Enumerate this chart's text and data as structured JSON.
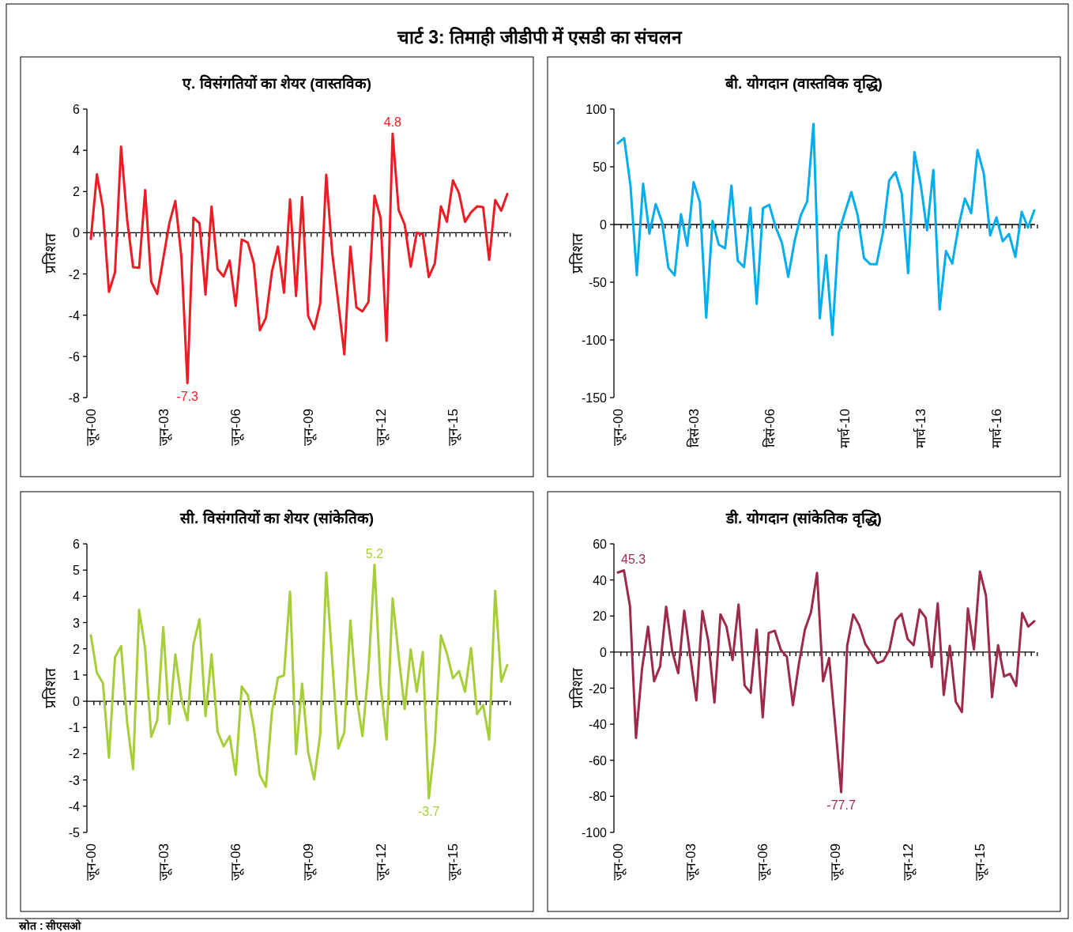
{
  "chart_data": [
    {
      "type": "other",
      "title": "चार्ट 3: तिमाही जीडीपी में एसडी का संचलन",
      "annotations": [
        "स्रोत : सीएसओ"
      ]
    },
    {
      "type": "line",
      "title": "ए. विसंगतियों का शेयर (वास्तविक)",
      "ylabel": "प्रतिशत",
      "ylim": [
        -8,
        6
      ],
      "yticks": [
        -8,
        -6,
        -4,
        -2,
        0,
        2,
        4,
        6
      ],
      "categories": [
        "जून-00",
        null,
        null,
        null,
        null,
        null,
        null,
        null,
        null,
        null,
        null,
        null,
        "जून-03",
        null,
        null,
        null,
        null,
        null,
        null,
        null,
        null,
        null,
        null,
        null,
        "जून-06",
        null,
        null,
        null,
        null,
        null,
        null,
        null,
        null,
        null,
        null,
        null,
        "जून-09",
        null,
        null,
        null,
        null,
        null,
        null,
        null,
        null,
        null,
        null,
        null,
        "जून-12",
        null,
        null,
        null,
        null,
        null,
        null,
        null,
        null,
        null,
        null,
        null,
        "जून-15",
        null,
        null,
        null,
        null,
        null,
        null,
        null,
        null,
        null
      ],
      "series": [
        {
          "color": "#ed1c24",
          "values": [
            -0.3,
            2.84,
            1.18,
            -2.87,
            -1.92,
            4.18,
            0.67,
            -1.67,
            -1.7,
            2.07,
            -2.37,
            -2.97,
            -1.25,
            0.46,
            1.54,
            -1.17,
            -7.3,
            0.73,
            0.46,
            -3.0,
            1.27,
            -1.78,
            -2.12,
            -1.35,
            -3.55,
            -0.33,
            -0.48,
            -1.48,
            -4.73,
            -4.14,
            -1.89,
            -0.67,
            -2.91,
            1.62,
            -3.07,
            1.73,
            -4.03,
            -4.68,
            -3.44,
            2.82,
            -1.0,
            -3.4,
            -5.9,
            -0.67,
            -3.62,
            -3.82,
            -3.36,
            1.8,
            0.73,
            -5.25,
            4.8,
            1.1,
            0.4,
            -1.65,
            0,
            -0.07,
            -2.15,
            -1.48,
            1.28,
            0.53,
            2.54,
            1.92,
            0.53,
            0.99,
            1.28,
            1.24,
            -1.32,
            1.59,
            1.07,
            1.88
          ],
          "value_labels": [
            null,
            null,
            null,
            null,
            null,
            null,
            null,
            null,
            null,
            null,
            null,
            null,
            null,
            null,
            null,
            null,
            "-7.3",
            null,
            null,
            null,
            null,
            null,
            null,
            null,
            null,
            null,
            null,
            null,
            null,
            null,
            null,
            null,
            null,
            null,
            null,
            null,
            null,
            null,
            null,
            null,
            null,
            null,
            null,
            null,
            null,
            null,
            null,
            null,
            null,
            null,
            "4.8",
            null,
            null,
            null,
            null,
            null,
            null,
            null,
            null,
            null,
            null,
            null,
            null,
            null,
            null,
            null,
            null,
            null,
            null,
            null
          ]
        }
      ]
    },
    {
      "type": "line",
      "title": "बी. योगदान (वास्तविक वृद्धि)",
      "ylabel": "प्रतिशत",
      "ylim": [
        -150,
        100
      ],
      "yticks": [
        -150,
        -100,
        -50,
        0,
        50,
        100
      ],
      "categories": [
        "जून-00",
        null,
        null,
        null,
        null,
        null,
        null,
        null,
        null,
        null,
        null,
        null,
        "दिसं-03",
        null,
        null,
        null,
        null,
        null,
        null,
        null,
        null,
        null,
        null,
        null,
        "दिसं-06",
        null,
        null,
        null,
        null,
        null,
        null,
        null,
        null,
        null,
        null,
        null,
        "मार्च-10",
        null,
        null,
        null,
        null,
        null,
        null,
        null,
        null,
        null,
        null,
        null,
        "मार्च-13",
        null,
        null,
        null,
        null,
        null,
        null,
        null,
        null,
        null,
        null,
        null,
        "मार्च-16",
        null,
        null,
        null,
        null,
        null,
        null
      ],
      "series": [
        {
          "color": "#00aeef",
          "values": [
            70.5,
            74.8,
            33.3,
            -43.9,
            35.3,
            -7.9,
            17.7,
            2.2,
            -37.4,
            -44.1,
            8.9,
            -18.5,
            36.7,
            19.4,
            -80.8,
            3.1,
            -17.5,
            -20.6,
            33.8,
            -31.4,
            -36.9,
            14.6,
            -68.8,
            14.1,
            17.0,
            -2.2,
            -15.8,
            -45.3,
            -14.6,
            8.2,
            19.9,
            87.1,
            -81.3,
            -26.6,
            -95.7,
            -7.4,
            10.6,
            28.1,
            8.2,
            -29.0,
            -34.3,
            -34.5,
            -7.4,
            38.1,
            45.3,
            26.6,
            -42.2,
            62.6,
            34.5,
            -5.0,
            47.2,
            -73.6,
            -23.0,
            -33.8,
            -1.4,
            22.5,
            9.8,
            64.5,
            44.1,
            -9.4,
            6.2,
            -14.6,
            -8.2,
            -28.1,
            11.0,
            -2.6,
            12.2
          ]
        }
      ]
    },
    {
      "type": "line",
      "title": "सी. विसंगतियों का शेयर (सांकेतिक)",
      "ylabel": "प्रतिशत",
      "ylim": [
        -5,
        6
      ],
      "yticks": [
        -5,
        -4,
        -3,
        -2,
        -1,
        0,
        1,
        2,
        3,
        4,
        5,
        6
      ],
      "categories": [
        "जून-00",
        null,
        null,
        null,
        null,
        null,
        null,
        null,
        null,
        null,
        null,
        null,
        "जून-03",
        null,
        null,
        null,
        null,
        null,
        null,
        null,
        null,
        null,
        null,
        null,
        "जून-06",
        null,
        null,
        null,
        null,
        null,
        null,
        null,
        null,
        null,
        null,
        null,
        "जून-09",
        null,
        null,
        null,
        null,
        null,
        null,
        null,
        null,
        null,
        null,
        null,
        "जून-12",
        null,
        null,
        null,
        null,
        null,
        null,
        null,
        null,
        null,
        null,
        null,
        "जून-15",
        null,
        null,
        null,
        null,
        null,
        null,
        null,
        null,
        null
      ],
      "series": [
        {
          "color": "#a6ce39",
          "values": [
            2.51,
            1.09,
            0.69,
            -2.15,
            1.68,
            2.1,
            -0.78,
            -2.59,
            3.48,
            2.01,
            -1.35,
            -0.73,
            2.83,
            -0.86,
            1.79,
            0.08,
            -0.73,
            2.17,
            3.13,
            -0.57,
            1.79,
            -1.16,
            -1.72,
            -1.33,
            -2.8,
            0.56,
            0.24,
            -1.0,
            -2.82,
            -3.26,
            -0.41,
            0.9,
            0.99,
            4.18,
            -2.02,
            0.67,
            -1.93,
            -2.98,
            -1.27,
            4.9,
            1.52,
            -1.8,
            -1.18,
            3.08,
            0.18,
            -1.33,
            1.2,
            5.2,
            0.61,
            -1.46,
            3.92,
            1.74,
            -0.3,
            1.98,
            0.36,
            1.88,
            -3.7,
            -1.59,
            2.51,
            1.82,
            0.88,
            1.15,
            0.36,
            2.03,
            -0.49,
            -0.14,
            -1.46,
            4.21,
            0.75,
            1.38
          ],
          "value_labels": [
            null,
            null,
            null,
            null,
            null,
            null,
            null,
            null,
            null,
            null,
            null,
            null,
            null,
            null,
            null,
            null,
            null,
            null,
            null,
            null,
            null,
            null,
            null,
            null,
            null,
            null,
            null,
            null,
            null,
            null,
            null,
            null,
            null,
            null,
            null,
            null,
            null,
            null,
            null,
            null,
            null,
            null,
            null,
            null,
            null,
            null,
            null,
            "5.2",
            null,
            null,
            null,
            null,
            null,
            null,
            null,
            null,
            "-3.7",
            null,
            null,
            null,
            null,
            null,
            null,
            null,
            null,
            null,
            null,
            null,
            null,
            null
          ]
        }
      ]
    },
    {
      "type": "line",
      "title": "डी. योगदान (सांकेतिक वृद्धि)",
      "ylabel": "प्रतिशत",
      "ylim": [
        -100,
        60
      ],
      "yticks": [
        -100,
        -80,
        -60,
        -40,
        -20,
        0,
        20,
        40,
        60
      ],
      "categories": [
        "जून-00",
        null,
        null,
        null,
        null,
        null,
        null,
        null,
        null,
        null,
        null,
        null,
        "जून-03",
        null,
        null,
        null,
        null,
        null,
        null,
        null,
        null,
        null,
        null,
        null,
        "जून-06",
        null,
        null,
        null,
        null,
        null,
        null,
        null,
        null,
        null,
        null,
        null,
        "जून-09",
        null,
        null,
        null,
        null,
        null,
        null,
        null,
        null,
        null,
        null,
        null,
        "जून-12",
        null,
        null,
        null,
        null,
        null,
        null,
        null,
        null,
        null,
        null,
        null,
        "जून-15",
        null,
        null,
        null,
        null,
        null,
        null,
        null,
        null,
        null
      ],
      "series": [
        {
          "color": "#9e2a4b",
          "values": [
            44.1,
            45.3,
            25.5,
            -47.6,
            -9.4,
            14.1,
            -16.2,
            -7.9,
            25.2,
            0.5,
            -11.7,
            22.9,
            -2.6,
            -26.8,
            22.7,
            5.8,
            -28.0,
            20.9,
            14.1,
            -4.4,
            26.4,
            -18.5,
            -22.6,
            12.4,
            -36.2,
            10.6,
            11.8,
            1.2,
            -2.6,
            -29.4,
            -6.4,
            12.6,
            22.1,
            43.9,
            -16.2,
            -3.3,
            -40,
            -77.7,
            3.5,
            20.9,
            14.8,
            4.5,
            -0.6,
            -6.1,
            -4.8,
            1.2,
            17.6,
            21.2,
            7.3,
            3.8,
            23.6,
            19.1,
            -8.3,
            27.0,
            -23.8,
            3.5,
            -27.6,
            -33.3,
            24.2,
            1.5,
            44.7,
            31.2,
            -25.0,
            3.8,
            -13.5,
            -12.1,
            -18.8,
            21.7,
            14.1,
            17.1
          ],
          "value_labels": [
            null,
            "45.3",
            null,
            null,
            null,
            null,
            null,
            null,
            null,
            null,
            null,
            null,
            null,
            null,
            null,
            null,
            null,
            null,
            null,
            null,
            null,
            null,
            null,
            null,
            null,
            null,
            null,
            null,
            null,
            null,
            null,
            null,
            null,
            null,
            null,
            null,
            null,
            "-77.7",
            null,
            null,
            null,
            null,
            null,
            null,
            null,
            null,
            null,
            null,
            null,
            null,
            null,
            null,
            null,
            null,
            null,
            null,
            null,
            null,
            null,
            null,
            null,
            null,
            null,
            null,
            null,
            null,
            null,
            null,
            null,
            null
          ]
        }
      ]
    }
  ]
}
